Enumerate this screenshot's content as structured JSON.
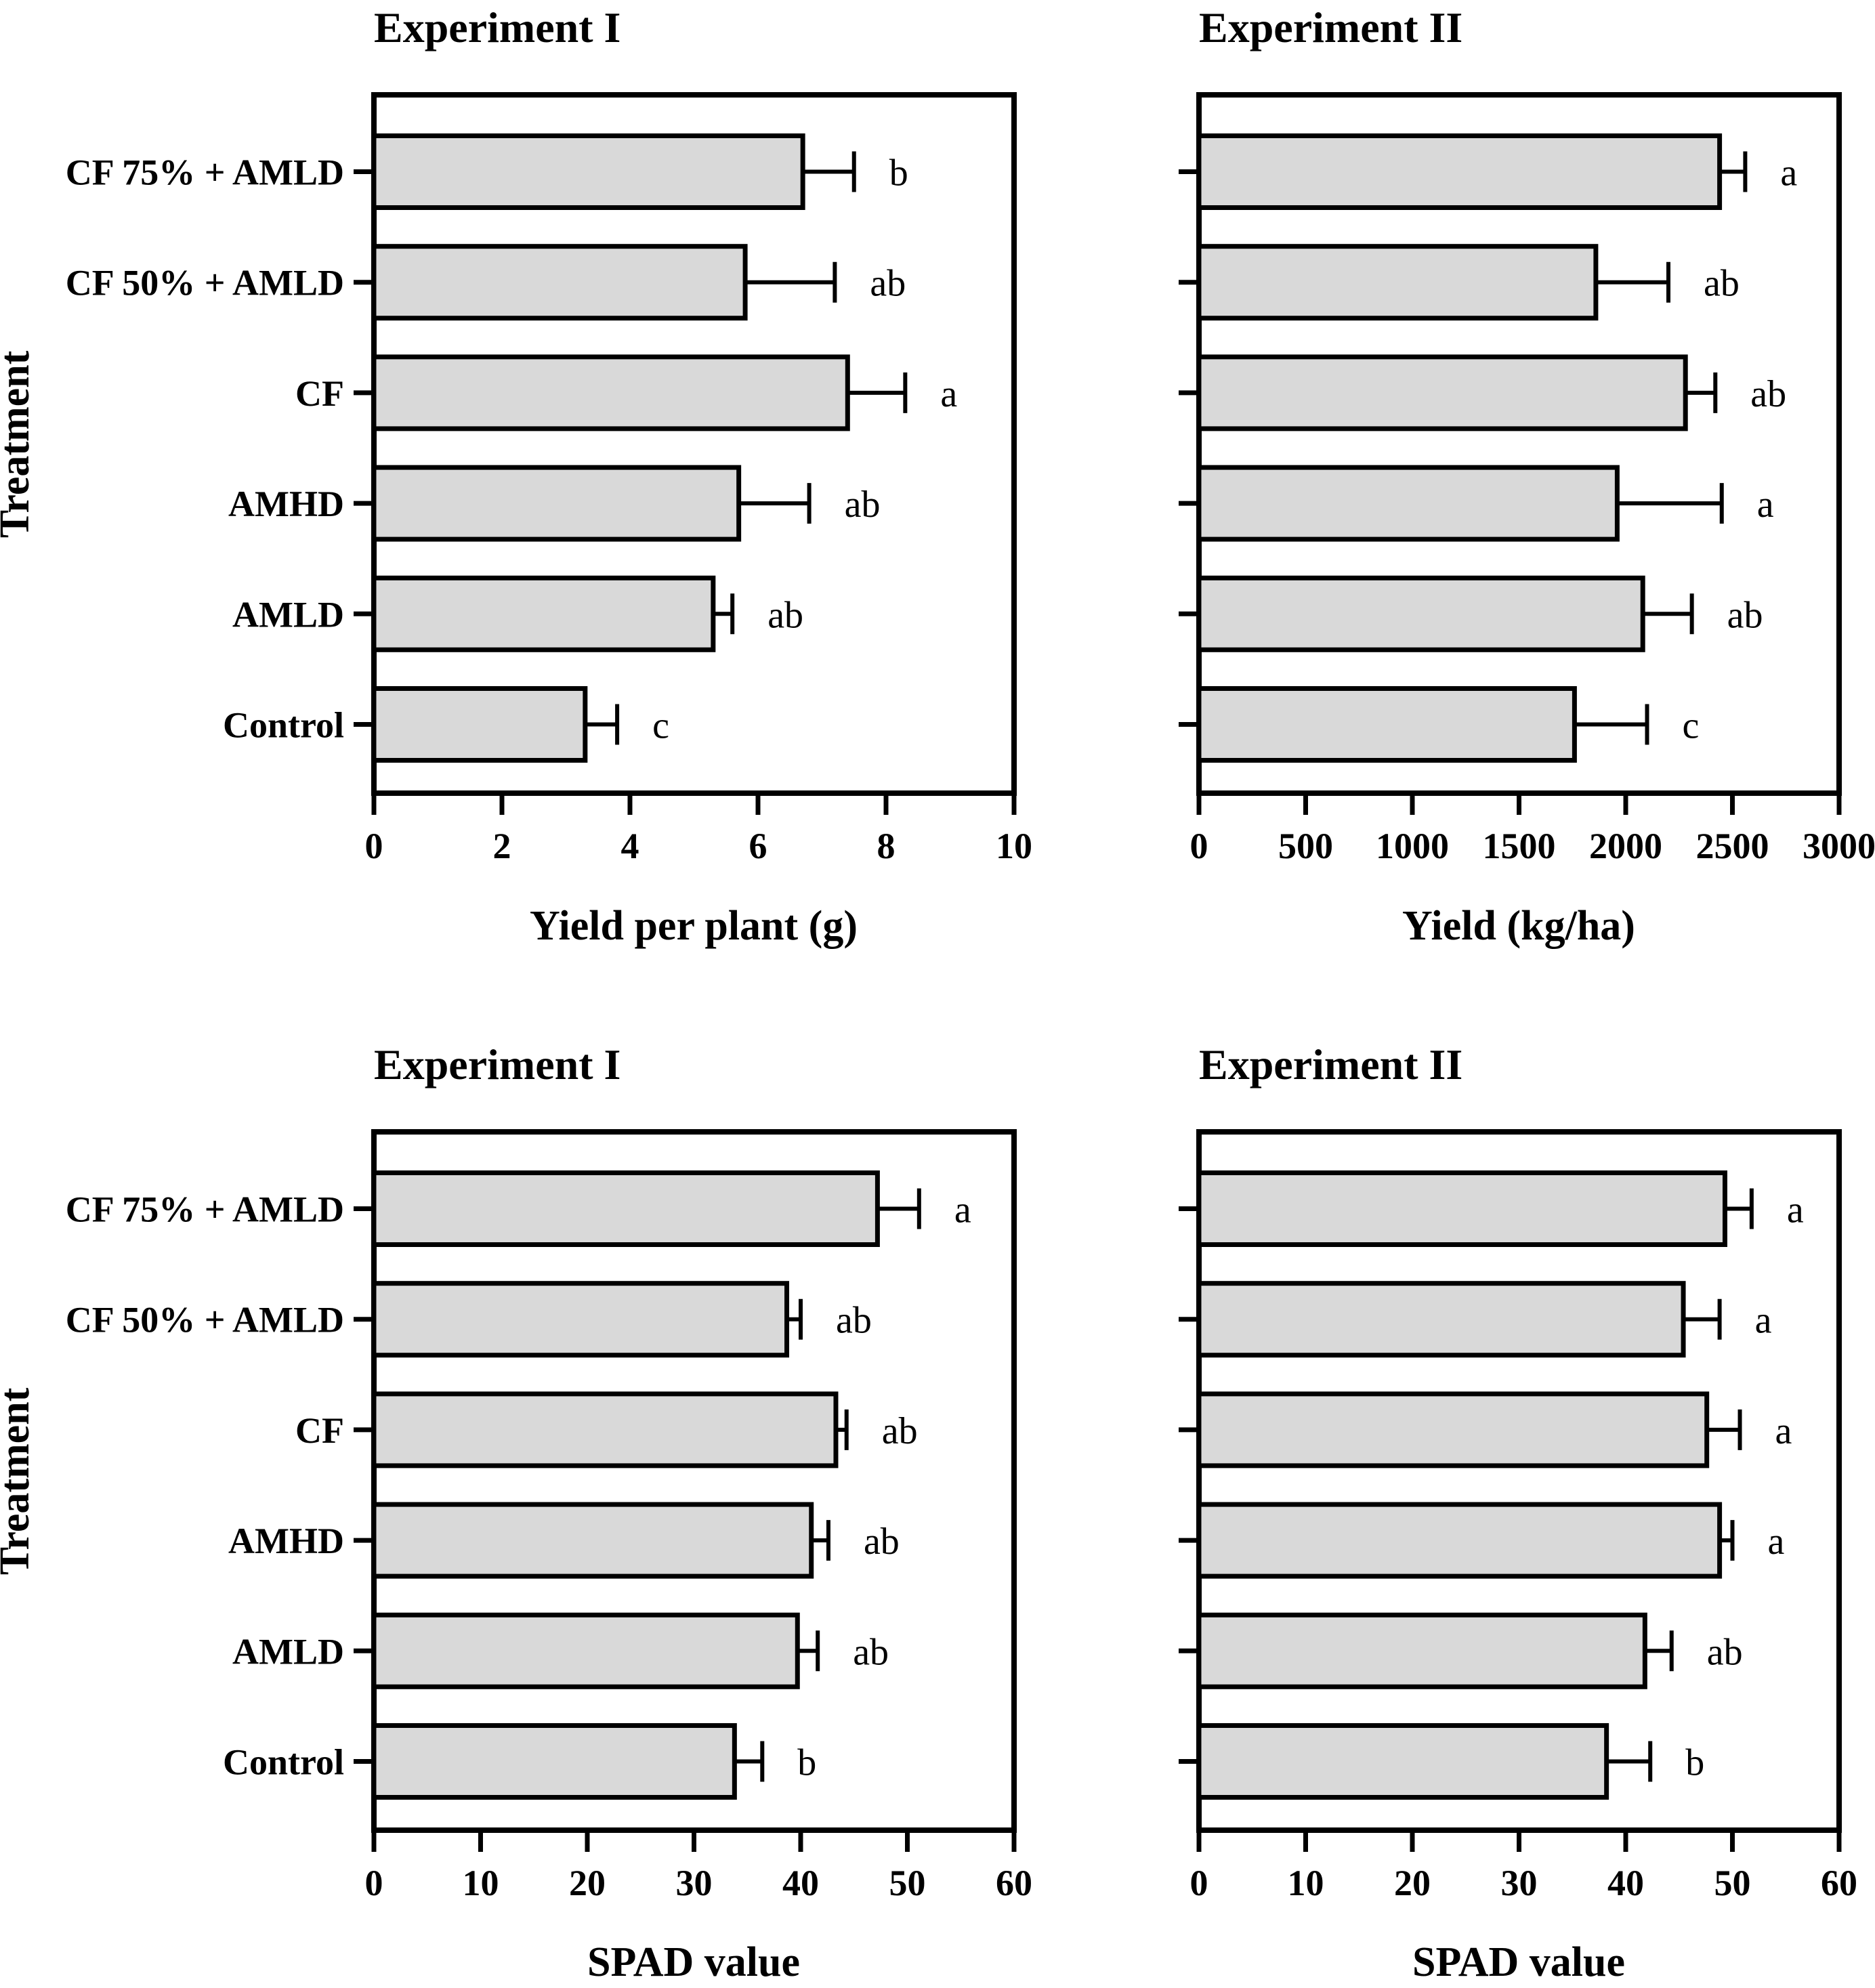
{
  "figure": {
    "background": "#ffffff",
    "style": {
      "bar_fill": "#d9d9d9",
      "bar_stroke": "#000000",
      "frame_color": "#000000"
    }
  },
  "chart_data": [
    {
      "type": "bar",
      "orientation": "horizontal",
      "title": "Experiment I",
      "xlabel": "Yield per plant (g)",
      "ylabel": "Treatment",
      "show_category_labels": true,
      "categories": [
        "CF 75% + AMLD",
        "CF 50% + AMLD",
        "CF",
        "AMHD",
        "AMLD",
        "Control"
      ],
      "values": [
        6.7,
        5.8,
        7.4,
        5.7,
        5.3,
        3.3
      ],
      "upper_errors": [
        0.8,
        1.4,
        0.9,
        1.1,
        0.3,
        0.5
      ],
      "sig_letters": [
        "b",
        "ab",
        "a",
        "ab",
        "ab",
        "c"
      ],
      "xlim": [
        0,
        10
      ],
      "xticks": [
        0,
        2,
        4,
        6,
        8,
        10
      ],
      "grid": false,
      "legend": "none"
    },
    {
      "type": "bar",
      "orientation": "horizontal",
      "title": "Experiment II",
      "xlabel": "Yield (kg/ha)",
      "ylabel": "",
      "show_category_labels": false,
      "categories": [
        "CF 75% + AMLD",
        "CF 50% + AMLD",
        "CF",
        "AMHD",
        "AMLD",
        "Control"
      ],
      "values": [
        2440,
        1860,
        2280,
        1960,
        2080,
        1760
      ],
      "upper_errors": [
        120,
        340,
        140,
        490,
        230,
        340
      ],
      "sig_letters": [
        "a",
        "ab",
        "ab",
        "a",
        "ab",
        "c"
      ],
      "xlim": [
        0,
        3000
      ],
      "xticks": [
        0,
        500,
        1000,
        1500,
        2000,
        2500,
        3000
      ],
      "grid": false,
      "legend": "none"
    },
    {
      "type": "bar",
      "orientation": "horizontal",
      "title": "Experiment I",
      "xlabel": "SPAD value",
      "ylabel": "Treatment",
      "show_category_labels": true,
      "categories": [
        "CF 75% + AMLD",
        "CF 50% + AMLD",
        "CF",
        "AMHD",
        "AMLD",
        "Control"
      ],
      "values": [
        47.2,
        38.7,
        43.3,
        41.0,
        39.7,
        33.8
      ],
      "upper_errors": [
        3.9,
        1.3,
        1.0,
        1.6,
        1.9,
        2.6
      ],
      "sig_letters": [
        "a",
        "ab",
        "ab",
        "ab",
        "ab",
        "b"
      ],
      "xlim": [
        0,
        60
      ],
      "xticks": [
        0,
        10,
        20,
        30,
        40,
        50,
        60
      ],
      "grid": false,
      "legend": "none"
    },
    {
      "type": "bar",
      "orientation": "horizontal",
      "title": "Experiment II",
      "xlabel": "SPAD value",
      "ylabel": "",
      "show_category_labels": false,
      "categories": [
        "CF 75% + AMLD",
        "CF 50% + AMLD",
        "CF",
        "AMHD",
        "AMLD",
        "Control"
      ],
      "values": [
        49.3,
        45.4,
        47.6,
        48.8,
        41.8,
        38.2
      ],
      "upper_errors": [
        2.5,
        3.4,
        3.1,
        1.2,
        2.5,
        4.1
      ],
      "sig_letters": [
        "a",
        "a",
        "a",
        "a",
        "ab",
        "b"
      ],
      "xlim": [
        0,
        60
      ],
      "xticks": [
        0,
        10,
        20,
        30,
        40,
        50,
        60
      ],
      "grid": false,
      "legend": "none"
    }
  ]
}
